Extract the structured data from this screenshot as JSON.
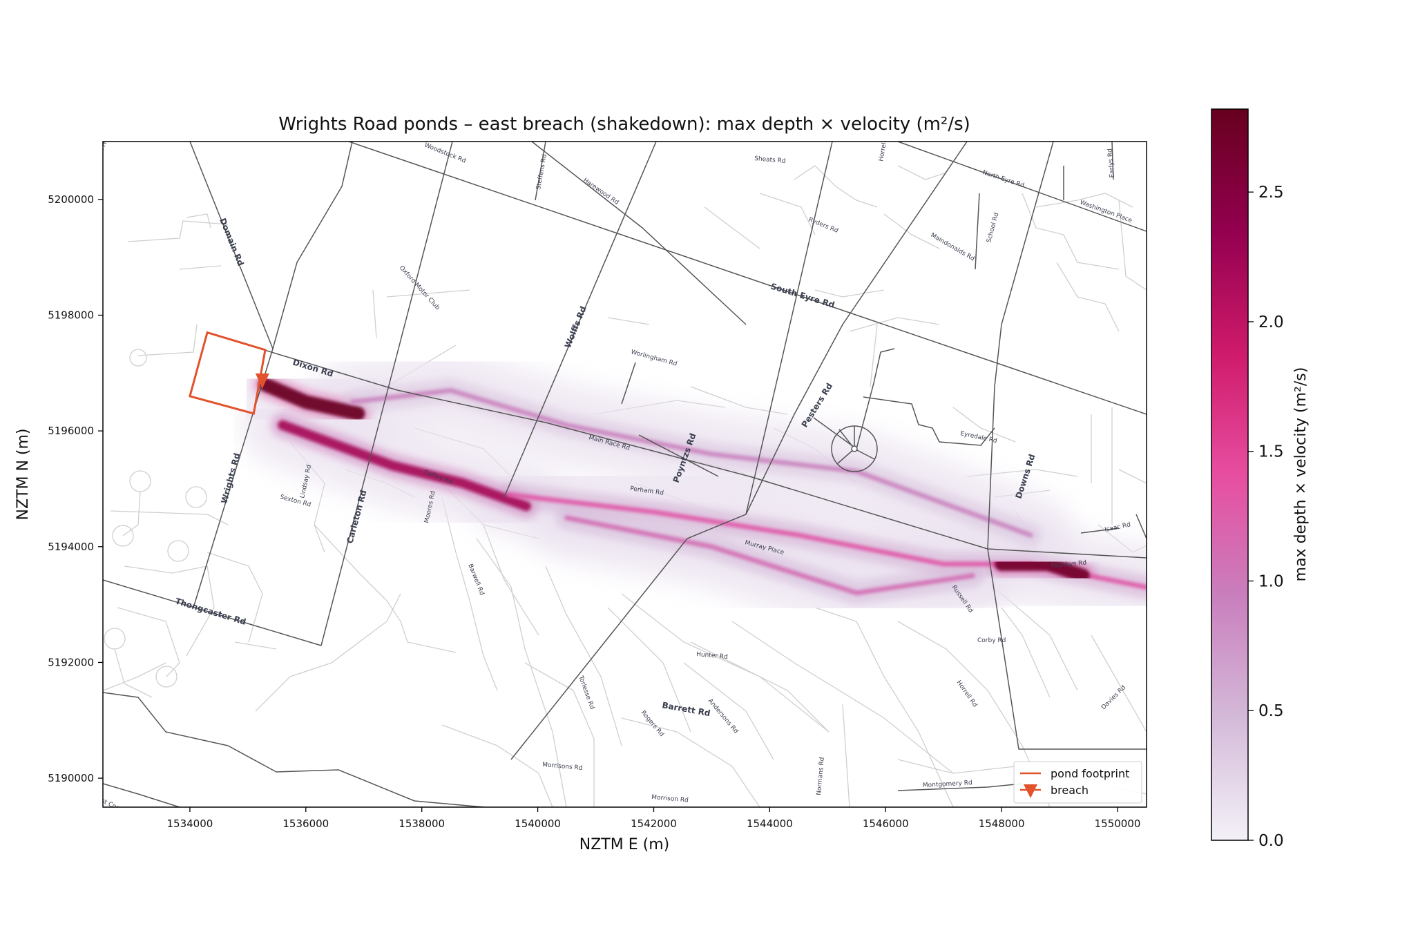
{
  "title": "Wrights Road ponds – east breach (shakedown): max depth × velocity (m²/s)",
  "axes": {
    "xlabel": "NZTM E (m)",
    "ylabel": "NZTM N (m)",
    "xticks": [
      "1534000",
      "1536000",
      "1538000",
      "1540000",
      "1542000",
      "1544000",
      "1546000",
      "1548000",
      "1550000"
    ],
    "yticks": [
      "5190000",
      "5192000",
      "5194000",
      "5196000",
      "5198000",
      "5200000"
    ],
    "xlim": [
      1532500,
      1550500
    ],
    "ylim": [
      5189500,
      5201000
    ]
  },
  "colorbar": {
    "label": "max depth × velocity (m²/s)",
    "ticks": [
      "0.0",
      "0.5",
      "1.0",
      "1.5",
      "2.0",
      "2.5"
    ],
    "range": [
      0.0,
      2.82
    ],
    "colors": [
      "#f3f1f8",
      "#d4bad9",
      "#c97fbd",
      "#e74ea0",
      "#cf1a6b",
      "#93004f",
      "#67001f"
    ]
  },
  "legend": {
    "position": "lower-right",
    "items": [
      {
        "label": "pond footprint",
        "color": "#e2522d"
      },
      {
        "label": "breach",
        "color": "#e2522d"
      }
    ]
  },
  "roads_major": [
    "Dixon Rd",
    "Domain Rd",
    "Wrights Rd",
    "Carleton Rd",
    "Wolffs Rd",
    "Poyntzs Rd",
    "Pesters Rd",
    "South Eyre Rd",
    "Downs Rd",
    "Thongcaster Rd",
    "Barrett Rd"
  ],
  "roads_minor": [
    "Burnt Hill Rd",
    "Woodstock Rd",
    "Steffens Rd",
    "Harewood Rd",
    "Sheats Rd",
    "Horrells Rd",
    "North Eyre Rd",
    "Earlys Rd",
    "Washington Place",
    "Ryders Rd",
    "School Rd",
    "Maindonalds Rd",
    "Oxford Motor Club",
    "Worlingham Rd",
    "Main Race Rd",
    "Eyredale Rd",
    "Isaac Rd",
    "Perham Rd",
    "Coffey Rd",
    "Sexton Rd",
    "Lindsay Rd",
    "Moores Rd",
    "Murray Place",
    "Pashbys Rd",
    "Barwell Rd",
    "Russell Rd",
    "Corby Rd",
    "Hunter Rd",
    "Horrell Rd",
    "Davies Rd",
    "Torlesse Rd",
    "Rogers Rd",
    "Andersons Rd",
    "Morrisons Rd",
    "Morrison Rd",
    "Normans Rd",
    "Montgomery Rd",
    "Old West Coast Rd"
  ],
  "chart_data": {
    "type": "heatmap",
    "title": "Wrights Road ponds – east breach (shakedown): max depth × velocity (m²/s)",
    "xlabel": "NZTM E (m)",
    "ylabel": "NZTM N (m)",
    "xlim": [
      1532500,
      1550500
    ],
    "ylim": [
      5189500,
      5201000
    ],
    "colorbar_range": [
      0.0,
      2.82
    ],
    "pond_footprint": [
      [
        1534300,
        5197700
      ],
      [
        1535300,
        5197400
      ],
      [
        1535100,
        5196300
      ],
      [
        1534000,
        5196600
      ]
    ],
    "breach": [
      1535250,
      5196850
    ],
    "flow_paths": [
      {
        "points": [
          [
            1535300,
            5196800
          ],
          [
            1536000,
            5196500
          ],
          [
            1536900,
            5196300
          ]
        ],
        "value": 2.8
      },
      {
        "points": [
          [
            1535600,
            5196100
          ],
          [
            1537500,
            5195400
          ],
          [
            1538700,
            5195100
          ],
          [
            1539800,
            5194700
          ]
        ],
        "value": 2.2
      },
      {
        "points": [
          [
            1536800,
            5196500
          ],
          [
            1538500,
            5196700
          ],
          [
            1540500,
            5196100
          ],
          [
            1543000,
            5195600
          ],
          [
            1545500,
            5195300
          ],
          [
            1548500,
            5194200
          ]
        ],
        "value": 0.9
      },
      {
        "points": [
          [
            1539500,
            5194900
          ],
          [
            1542000,
            5194600
          ],
          [
            1544500,
            5194200
          ],
          [
            1547000,
            5193700
          ],
          [
            1548500,
            5193700
          ],
          [
            1550500,
            5193300
          ]
        ],
        "value": 1.3
      },
      {
        "points": [
          [
            1540500,
            5194500
          ],
          [
            1543000,
            5194000
          ],
          [
            1545500,
            5193200
          ],
          [
            1547500,
            5193500
          ]
        ],
        "value": 1.1
      },
      {
        "points": [
          [
            1548000,
            5193700
          ],
          [
            1548800,
            5193700
          ],
          [
            1549400,
            5193500
          ]
        ],
        "value": 2.7
      }
    ]
  }
}
